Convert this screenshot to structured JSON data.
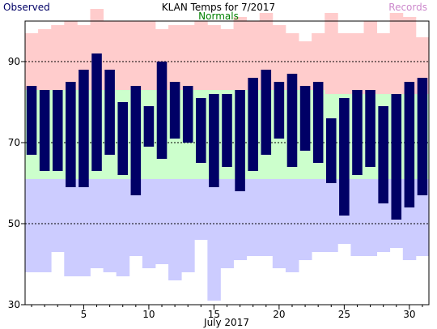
{
  "chart_data": {
    "type": "bar",
    "title": "KLAN Temps for 7/2017",
    "xlabel": "July 2017",
    "ylabel": "",
    "legend": {
      "observed": "Observed",
      "normals": "Normals",
      "records": "Records",
      "placement": "top"
    },
    "colors": {
      "observed": "#000066",
      "normals": "#ccffcc",
      "records": "#ffcccc",
      "record_low": "#ccccff",
      "observed_text": "#000066",
      "normals_text": "#008000",
      "records_text": "#cc88cc"
    },
    "ylim": [
      30,
      100
    ],
    "xlim": [
      0.5,
      31.5
    ],
    "yticks": [
      30,
      50,
      70,
      90
    ],
    "xticks": [
      5,
      10,
      15,
      20,
      25,
      30
    ],
    "dotted_gridlines": [
      50,
      70,
      90
    ],
    "days": [
      1,
      2,
      3,
      4,
      5,
      6,
      7,
      8,
      9,
      10,
      11,
      12,
      13,
      14,
      15,
      16,
      17,
      18,
      19,
      20,
      21,
      22,
      23,
      24,
      25,
      26,
      27,
      28,
      29,
      30,
      31
    ],
    "series": [
      {
        "name": "Observed",
        "kind": "floating-bar",
        "highs": [
          84,
          83,
          83,
          85,
          88,
          92,
          88,
          80,
          84,
          79,
          90,
          85,
          84,
          81,
          82,
          82,
          83,
          86,
          88,
          85,
          87,
          84,
          85,
          76,
          81,
          83,
          83,
          79,
          82,
          85,
          86
        ],
        "lows": [
          67,
          63,
          63,
          59,
          59,
          63,
          67,
          62,
          57,
          69,
          66,
          71,
          70,
          65,
          59,
          64,
          58,
          63,
          67,
          71,
          64,
          68,
          65,
          60,
          52,
          62,
          64,
          55,
          51,
          54,
          57
        ]
      },
      {
        "name": "Normals",
        "kind": "band",
        "highs": [
          83,
          83,
          83,
          83,
          83,
          83,
          83,
          83,
          83,
          83,
          83,
          83,
          83,
          83,
          83,
          83,
          83,
          83,
          83,
          83,
          83,
          83,
          83,
          82,
          82,
          82,
          82,
          82,
          82,
          82,
          82
        ],
        "lows": [
          61,
          61,
          61,
          61,
          61,
          61,
          61,
          61,
          61,
          61,
          61,
          61,
          61,
          61,
          61,
          61,
          61,
          61,
          61,
          61,
          61,
          61,
          61,
          61,
          61,
          61,
          61,
          61,
          61,
          61,
          61
        ]
      },
      {
        "name": "Records",
        "kind": "band",
        "highs": [
          97,
          98,
          99,
          100,
          99,
          103,
          100,
          100,
          100,
          100,
          98,
          99,
          99,
          100,
          99,
          98,
          101,
          100,
          102,
          99,
          97,
          95,
          97,
          102,
          97,
          97,
          100,
          97,
          102,
          101,
          96
        ],
        "lows": [
          38,
          38,
          43,
          37,
          37,
          39,
          38,
          37,
          42,
          39,
          40,
          36,
          38,
          46,
          31,
          39,
          41,
          42,
          42,
          39,
          38,
          41,
          43,
          43,
          45,
          42,
          42,
          43,
          44,
          41,
          42
        ]
      }
    ]
  }
}
